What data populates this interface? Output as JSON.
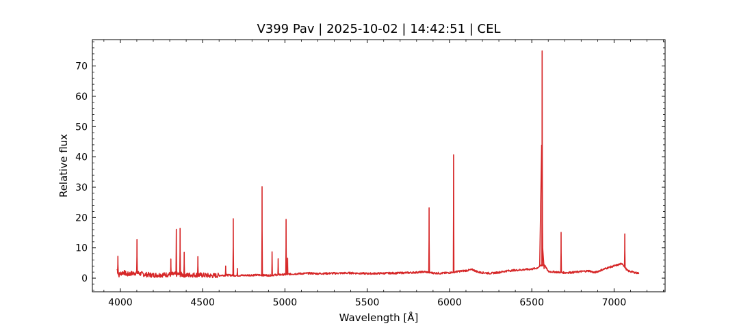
{
  "chart_data": {
    "type": "line",
    "title": "V399 Pav | 2025-10-02 | 14:42:51 | CEL",
    "xlabel": "Wavelength [Å]",
    "ylabel": "Relative flux",
    "xlim": [
      3830,
      7310
    ],
    "ylim": [
      -4.5,
      78.7
    ],
    "xticks": [
      4000,
      4500,
      5000,
      5500,
      6000,
      6500,
      7000
    ],
    "yticks": [
      0,
      10,
      20,
      30,
      40,
      50,
      60,
      70
    ],
    "grid": false,
    "legend": "none",
    "series": [
      {
        "color": "#d62728",
        "x": [
          3980,
          3990,
          4000,
          4020,
          4040,
          4060,
          4080,
          4100,
          4120,
          4150,
          4200,
          4250,
          4300,
          4350,
          4400,
          4450,
          4500,
          4550,
          4600,
          4650,
          4700,
          4750,
          4800,
          4850,
          4900,
          4950,
          5000,
          5050,
          5100,
          5150,
          5200,
          5300,
          5400,
          5500,
          5600,
          5700,
          5800,
          5850,
          5900,
          5950,
          6000,
          6050,
          6100,
          6140,
          6180,
          6250,
          6300,
          6350,
          6400,
          6450,
          6500,
          6530,
          6550,
          6575,
          6600,
          6650,
          6700,
          6750,
          6800,
          6850,
          6880,
          6920,
          6960,
          7000,
          7030,
          7050,
          7080,
          7100,
          7130,
          7150
        ],
        "y": [
          3.0,
          1.0,
          1.5,
          2.0,
          1.2,
          1.5,
          1.6,
          1.8,
          1.5,
          1.2,
          1.0,
          1.1,
          1.2,
          1.3,
          1.0,
          1.1,
          1.0,
          0.8,
          0.9,
          1.0,
          0.9,
          0.9,
          1.0,
          1.0,
          0.9,
          1.1,
          1.2,
          1.4,
          1.5,
          1.6,
          1.5,
          1.6,
          1.7,
          1.5,
          1.6,
          1.7,
          1.9,
          2.1,
          1.7,
          1.6,
          1.8,
          2.2,
          2.5,
          2.8,
          1.9,
          1.6,
          1.9,
          2.4,
          2.6,
          2.8,
          3.0,
          3.3,
          4.0,
          4.5,
          2.2,
          2.0,
          1.8,
          1.9,
          2.2,
          2.4,
          1.8,
          2.6,
          3.4,
          4.0,
          4.5,
          4.8,
          2.5,
          2.2,
          1.8,
          1.6
        ],
        "peaks": [
          {
            "x": 3985,
            "y": 7.2
          },
          {
            "x": 4101,
            "y": 12.7
          },
          {
            "x": 4307,
            "y": 6.3
          },
          {
            "x": 4340,
            "y": 16.1
          },
          {
            "x": 4363,
            "y": 16.4
          },
          {
            "x": 4388,
            "y": 8.5
          },
          {
            "x": 4471,
            "y": 7.1
          },
          {
            "x": 4640,
            "y": 4.0
          },
          {
            "x": 4686,
            "y": 19.6
          },
          {
            "x": 4711,
            "y": 3.2
          },
          {
            "x": 4861,
            "y": 30.2
          },
          {
            "x": 4922,
            "y": 8.7
          },
          {
            "x": 4959,
            "y": 6.4
          },
          {
            "x": 5007,
            "y": 19.4
          },
          {
            "x": 5016,
            "y": 6.6
          },
          {
            "x": 5876,
            "y": 23.2
          },
          {
            "x": 6025,
            "y": 40.7
          },
          {
            "x": 6563,
            "y": 75.0
          },
          {
            "x": 6678,
            "y": 15.1
          },
          {
            "x": 7065,
            "y": 14.6
          }
        ]
      }
    ]
  }
}
